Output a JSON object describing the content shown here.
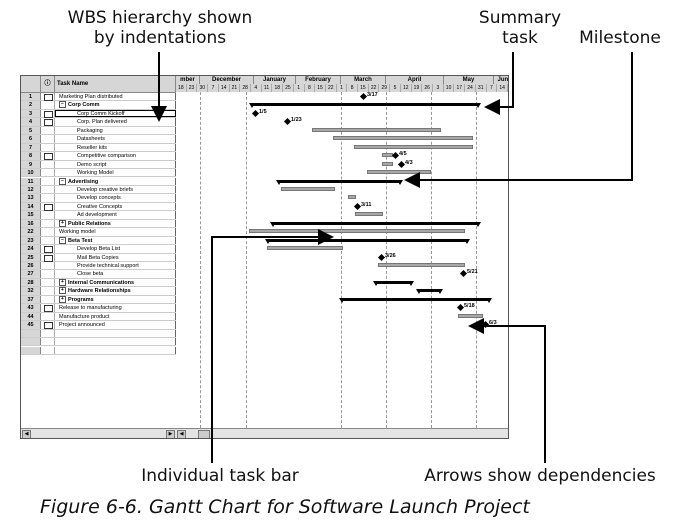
{
  "annotations": {
    "wbs": [
      "WBS hierarchy shown",
      "by indentations"
    ],
    "summary": [
      "Summary",
      "task"
    ],
    "milestone": "Milestone",
    "task_bar": "Individual task bar",
    "dependencies": "Arrows show dependencies"
  },
  "caption": "Figure 6-6. Gantt Chart for Software Launch Project",
  "sheet": {
    "indicators_header": "ⓘ",
    "task_name_header": "Task Name",
    "months": [
      "mber",
      "December",
      "January",
      "February",
      "March",
      "April",
      "May",
      "June"
    ],
    "days": [
      "18",
      "23",
      "30",
      "7",
      "14",
      "21",
      "28",
      "4",
      "11",
      "18",
      "25",
      "1",
      "8",
      "15",
      "22",
      "1",
      "8",
      "15",
      "22",
      "29",
      "5",
      "12",
      "19",
      "26",
      "3",
      "10",
      "17",
      "24",
      "31",
      "7",
      "14"
    ],
    "rows": [
      {
        "id": "1",
        "name": "Marketing Plan distributed",
        "indent": 1,
        "bold": false,
        "indicator": true
      },
      {
        "id": "2",
        "name": "Corp Comm",
        "indent": 1,
        "bold": true,
        "toggle": "−"
      },
      {
        "id": "3",
        "name": "Corp Comm Kickoff",
        "indent": 2,
        "bold": false,
        "indicator": true,
        "selected": true
      },
      {
        "id": "4",
        "name": "Corp. Plan delivered",
        "indent": 2,
        "bold": false,
        "indicator": true
      },
      {
        "id": "5",
        "name": "Packaging",
        "indent": 2,
        "bold": false
      },
      {
        "id": "6",
        "name": "Datasheets",
        "indent": 2,
        "bold": false
      },
      {
        "id": "7",
        "name": "Reseller kits",
        "indent": 2,
        "bold": false
      },
      {
        "id": "8",
        "name": "Competitive comparison",
        "indent": 2,
        "bold": false,
        "indicator": true
      },
      {
        "id": "9",
        "name": "Demo script",
        "indent": 2,
        "bold": false
      },
      {
        "id": "10",
        "name": "Working Model",
        "indent": 2,
        "bold": false
      },
      {
        "id": "11",
        "name": "Advertising",
        "indent": 1,
        "bold": true,
        "toggle": "−"
      },
      {
        "id": "12",
        "name": "Develop creative briefs",
        "indent": 2,
        "bold": false
      },
      {
        "id": "13",
        "name": "Develop concepts",
        "indent": 2,
        "bold": false
      },
      {
        "id": "14",
        "name": "Creative Concepts",
        "indent": 2,
        "bold": false,
        "indicator": true
      },
      {
        "id": "15",
        "name": "Ad development",
        "indent": 2,
        "bold": false
      },
      {
        "id": "16",
        "name": "Public Relations",
        "indent": 1,
        "bold": true,
        "toggle": "+"
      },
      {
        "id": "22",
        "name": "Working model",
        "indent": 1,
        "bold": false
      },
      {
        "id": "23",
        "name": "Beta Test",
        "indent": 1,
        "bold": true,
        "toggle": "−"
      },
      {
        "id": "24",
        "name": "Develop Beta List",
        "indent": 2,
        "bold": false,
        "indicator": true
      },
      {
        "id": "25",
        "name": "Mail Beta Copies",
        "indent": 2,
        "bold": false,
        "indicator": true
      },
      {
        "id": "26",
        "name": "Provide technical support",
        "indent": 2,
        "bold": false
      },
      {
        "id": "27",
        "name": "Close beta",
        "indent": 2,
        "bold": false
      },
      {
        "id": "28",
        "name": "Internal Communications",
        "indent": 1,
        "bold": true,
        "toggle": "+"
      },
      {
        "id": "32",
        "name": "Hardware Relationships",
        "indent": 1,
        "bold": true,
        "toggle": "+"
      },
      {
        "id": "37",
        "name": "Programs",
        "indent": 1,
        "bold": true,
        "toggle": "+"
      },
      {
        "id": "43",
        "name": "Release to manufacturing",
        "indent": 1,
        "bold": false,
        "indicator": true
      },
      {
        "id": "44",
        "name": "Manufacture product",
        "indent": 1,
        "bold": false
      },
      {
        "id": "45",
        "name": "Project announced",
        "indent": 1,
        "bold": false,
        "indicator": true
      },
      {
        "id": "",
        "name": "",
        "indent": 0,
        "bold": false
      },
      {
        "id": "",
        "name": "",
        "indent": 0,
        "bold": false
      },
      {
        "id": "",
        "name": "",
        "indent": 0,
        "bold": false
      }
    ],
    "milestones": [
      {
        "row": 0,
        "label": "3/17"
      },
      {
        "row": 2,
        "label": "1/5"
      },
      {
        "row": 3,
        "label": "1/23"
      },
      {
        "row": 7,
        "label": "4/5"
      },
      {
        "row": 8,
        "label": "4/3"
      },
      {
        "row": 13,
        "label": "3/11"
      },
      {
        "row": 19,
        "label": "3/26"
      },
      {
        "row": 21,
        "label": "5/21"
      },
      {
        "row": 25,
        "label": "5/18"
      },
      {
        "row": 27,
        "label": "6/3"
      }
    ]
  }
}
